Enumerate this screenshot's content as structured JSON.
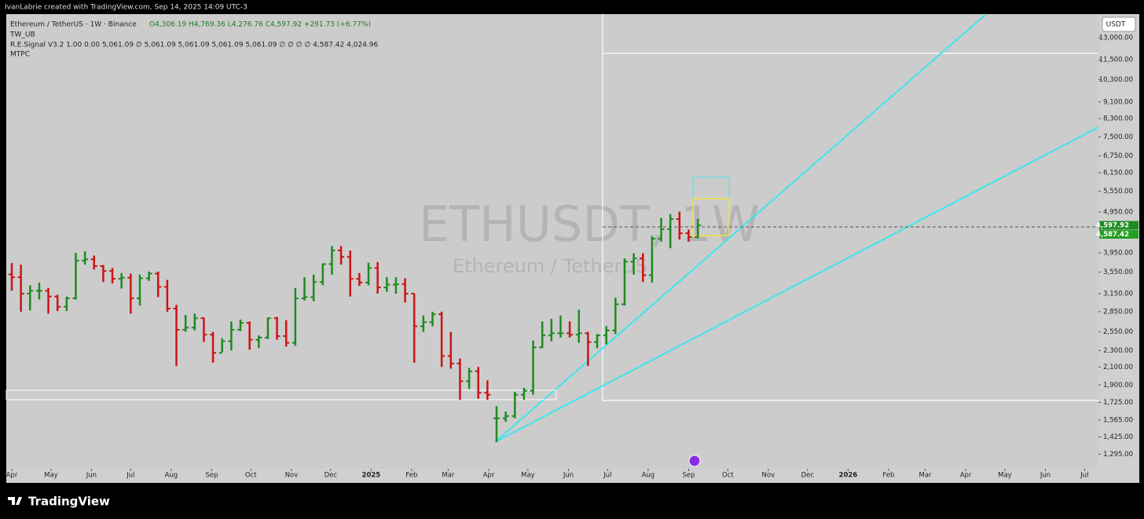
{
  "header": {
    "author_line": "IvanLabrie created with TradingView.com, Sep 14, 2025 14:09 UTC-3"
  },
  "legend": {
    "symbol_line": "Ethereum / TetherUS · 1W · Binance",
    "ohlc_line": "O4,306.19 H4,769.36 L4,276.76 C4,597.92 +291.73 (+6.77%)",
    "indicators": [
      "TW_UB",
      "R.E.Signal V3.2  1.00  0.00  5,061.09  ∅  5,061.09  5,061.09  5,061.09  5,061.09  ∅  ∅  ∅  ∅  4,587.42  4,024.96",
      "MTPC"
    ]
  },
  "watermark": {
    "symbol": "ETHUSDT, 1W",
    "name": "Ethereum / TetherUS"
  },
  "currency_button": "USDT",
  "footer": {
    "brand": "TradingView"
  },
  "chart_data": {
    "type": "ohlc",
    "log": true,
    "up_color": "#1f8a1f",
    "down_color": "#cc1414",
    "x": [
      0,
      1,
      2,
      3,
      4,
      5,
      6,
      7,
      8,
      9,
      10,
      11,
      12,
      13,
      14,
      15,
      16,
      17,
      18,
      19,
      20,
      21,
      22,
      23,
      24,
      25,
      26,
      27,
      28,
      29,
      30,
      31,
      32,
      33,
      34,
      35,
      36,
      37,
      38,
      39,
      40,
      41,
      42,
      43,
      44,
      45,
      46,
      47,
      48,
      49,
      50,
      51,
      52,
      53,
      54,
      55,
      56,
      57,
      58,
      59,
      60,
      61,
      62,
      63,
      64,
      65,
      66,
      67,
      68,
      69,
      70,
      71,
      72,
      73,
      74,
      75
    ],
    "open": [
      3505,
      3450,
      3150,
      3200,
      3200,
      3100,
      2930,
      3070,
      3780,
      3810,
      3670,
      3570,
      3420,
      3440,
      3070,
      3430,
      3520,
      3270,
      2900,
      2580,
      2610,
      2750,
      2510,
      2270,
      2420,
      2580,
      2680,
      2440,
      2470,
      2750,
      2490,
      2400,
      3070,
      3090,
      3360,
      3710,
      4000,
      3860,
      3420,
      3350,
      3630,
      3260,
      3310,
      3320,
      3150,
      2630,
      2690,
      2810,
      2230,
      2140,
      1940,
      2050,
      1820,
      1580,
      1580,
      1600,
      1800,
      1840,
      2340,
      2500,
      2530,
      2530,
      2510,
      2530,
      2410,
      2500,
      2570,
      2970,
      3760,
      3830,
      3490,
      4270,
      4500,
      4760,
      4400,
      4306.19
    ],
    "high": [
      3730,
      3700,
      3300,
      3350,
      3250,
      3130,
      3100,
      3950,
      3980,
      3890,
      3690,
      3630,
      3530,
      3520,
      3500,
      3560,
      3560,
      3400,
      2960,
      2800,
      2820,
      2760,
      2550,
      2460,
      2700,
      2730,
      2700,
      2500,
      2760,
      2770,
      2720,
      3250,
      3450,
      3500,
      3720,
      4100,
      4100,
      4000,
      3530,
      3740,
      3750,
      3450,
      3450,
      3430,
      3150,
      2790,
      2850,
      2850,
      2550,
      2200,
      2090,
      2100,
      1950,
      1690,
      1640,
      1830,
      1870,
      2430,
      2700,
      2740,
      2790,
      2700,
      2880,
      2550,
      2520,
      2630,
      3080,
      3830,
      3940,
      3940,
      4330,
      4790,
      4890,
      4960,
      4490,
      4769.36
    ],
    "low": [
      3200,
      2850,
      2870,
      3050,
      2820,
      2860,
      2860,
      3050,
      3700,
      3600,
      3360,
      3330,
      3240,
      2820,
      2950,
      3380,
      3090,
      2850,
      2110,
      2550,
      2570,
      2410,
      2150,
      2280,
      2300,
      2560,
      2310,
      2330,
      2450,
      2440,
      2350,
      2360,
      3030,
      3020,
      3300,
      3500,
      3700,
      3100,
      3290,
      3300,
      3150,
      3180,
      3150,
      3000,
      2150,
      2550,
      2630,
      2100,
      2080,
      1750,
      1860,
      1760,
      1750,
      1385,
      1550,
      1580,
      1750,
      1800,
      2330,
      2420,
      2470,
      2470,
      2400,
      2110,
      2330,
      2380,
      2520,
      2950,
      3500,
      3360,
      3350,
      4200,
      4050,
      4250,
      4200,
      4276.76
    ],
    "close": [
      3450,
      3150,
      3200,
      3200,
      3100,
      2930,
      3070,
      3780,
      3810,
      3670,
      3570,
      3420,
      3440,
      3070,
      3430,
      3520,
      3270,
      2900,
      2580,
      2610,
      2750,
      2510,
      2270,
      2420,
      2580,
      2680,
      2440,
      2470,
      2750,
      2490,
      2400,
      3070,
      3090,
      3360,
      3710,
      4000,
      3860,
      3420,
      3350,
      3630,
      3260,
      3310,
      3320,
      3150,
      2630,
      2690,
      2810,
      2230,
      2140,
      1940,
      2050,
      1820,
      1800,
      1580,
      1600,
      1800,
      1840,
      2340,
      2500,
      2530,
      2530,
      2510,
      2530,
      2410,
      2500,
      2570,
      2970,
      3760,
      3830,
      3490,
      4270,
      4500,
      4760,
      4400,
      4310,
      4597.92
    ],
    "xlim": [
      -0.6,
      118.8
    ],
    "xticks": [
      {
        "value": 0,
        "label": "Apr"
      },
      {
        "value": 4.29,
        "label": "May"
      },
      {
        "value": 8.71,
        "label": "Jun"
      },
      {
        "value": 13,
        "label": "Jul"
      },
      {
        "value": 17.43,
        "label": "Aug"
      },
      {
        "value": 21.86,
        "label": "Sep"
      },
      {
        "value": 26.14,
        "label": "Oct"
      },
      {
        "value": 30.57,
        "label": "Nov"
      },
      {
        "value": 34.86,
        "label": "Dec"
      },
      {
        "value": 39.29,
        "label": "2025"
      },
      {
        "value": 43.71,
        "label": "Feb"
      },
      {
        "value": 47.71,
        "label": "Mar"
      },
      {
        "value": 52.14,
        "label": "Apr"
      },
      {
        "value": 56.43,
        "label": "May"
      },
      {
        "value": 60.86,
        "label": "Jun"
      },
      {
        "value": 65.14,
        "label": "Jul"
      },
      {
        "value": 69.57,
        "label": "Aug"
      },
      {
        "value": 74,
        "label": "Sep"
      },
      {
        "value": 78.29,
        "label": "Oct"
      },
      {
        "value": 82.71,
        "label": "Nov"
      },
      {
        "value": 87,
        "label": "Dec"
      },
      {
        "value": 91.43,
        "label": "2026"
      },
      {
        "value": 95.86,
        "label": "Feb"
      },
      {
        "value": 99.86,
        "label": "Mar"
      },
      {
        "value": 104.29,
        "label": "Apr"
      },
      {
        "value": 108.57,
        "label": "May"
      },
      {
        "value": 113,
        "label": "Jun"
      },
      {
        "value": 117.29,
        "label": "Jul"
      }
    ],
    "ylim": [
      1195,
      14800
    ],
    "yticks": [
      {
        "value": 13000,
        "label": "13,000.00"
      },
      {
        "value": 11500,
        "label": "11,500.00"
      },
      {
        "value": 10300,
        "label": "10,300.00"
      },
      {
        "value": 9100,
        "label": "9,100.00"
      },
      {
        "value": 8300,
        "label": "8,300.00"
      },
      {
        "value": 7500,
        "label": "7,500.00"
      },
      {
        "value": 6750,
        "label": "6,750.00"
      },
      {
        "value": 6150,
        "label": "6,150.00"
      },
      {
        "value": 5550,
        "label": "5,550.00"
      },
      {
        "value": 4950,
        "label": "4,950.00"
      },
      {
        "value": 3950,
        "label": "3,950.00"
      },
      {
        "value": 3550,
        "label": "3,550.00"
      },
      {
        "value": 3150,
        "label": "3,150.00"
      },
      {
        "value": 2850,
        "label": "2,850.00"
      },
      {
        "value": 2550,
        "label": "2,550.00"
      },
      {
        "value": 2300,
        "label": "2,300.00"
      },
      {
        "value": 2100,
        "label": "2,100.00"
      },
      {
        "value": 1900,
        "label": "1,900.00"
      },
      {
        "value": 1725,
        "label": "1,725.00"
      },
      {
        "value": 1565,
        "label": "1,565.00"
      },
      {
        "value": 1425,
        "label": "1,425.00"
      },
      {
        "value": 1295,
        "label": "1,295.00"
      }
    ],
    "price_labels": [
      {
        "value": 4597.92,
        "label": "4,597.92",
        "color": "#1f8a1f"
      },
      {
        "value": 4587.42,
        "label": "4,587.42",
        "color": "#22a022"
      }
    ]
  }
}
